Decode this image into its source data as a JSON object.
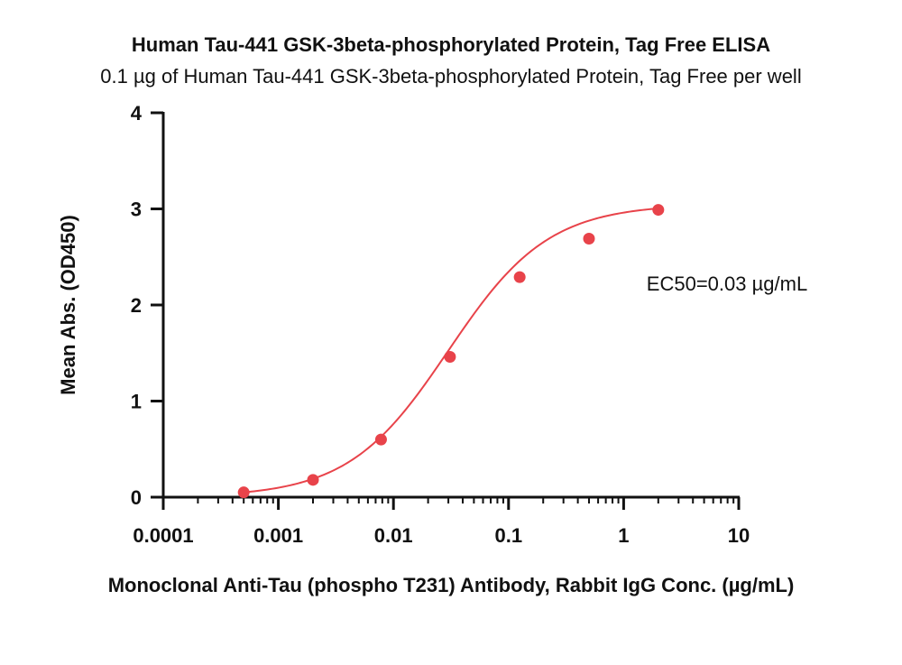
{
  "chart_data": {
    "type": "scatter",
    "title": "Human Tau-441 GSK-3beta-phosphorylated Protein, Tag Free ELISA",
    "subtitle": "0.1 µg of Human Tau-441 GSK-3beta-phosphorylated Protein, Tag Free per well",
    "xlabel": "Monoclonal Anti-Tau (phospho T231) Antibody, Rabbit IgG Conc. (µg/mL)",
    "ylabel": "Mean Abs. (OD450)",
    "x_scale": "log",
    "xlim": [
      0.0001,
      10
    ],
    "ylim": [
      0,
      4
    ],
    "x_ticks": [
      0.0001,
      0.001,
      0.01,
      0.1,
      1,
      10
    ],
    "x_tick_labels": [
      "0.0001",
      "0.001",
      "0.01",
      "0.1",
      "1",
      "10"
    ],
    "y_ticks": [
      0,
      1,
      2,
      3,
      4
    ],
    "y_tick_labels": [
      "0",
      "1",
      "2",
      "3",
      "4"
    ],
    "grid": false,
    "color": "#e8434a",
    "series": [
      {
        "x": [
          0.0005,
          0.002,
          0.0078,
          0.031,
          0.125,
          0.5,
          2.0
        ],
        "y": [
          0.05,
          0.18,
          0.6,
          1.46,
          2.29,
          2.69,
          2.99
        ]
      }
    ],
    "annotation": "EC50=0.03 µg/mL"
  }
}
